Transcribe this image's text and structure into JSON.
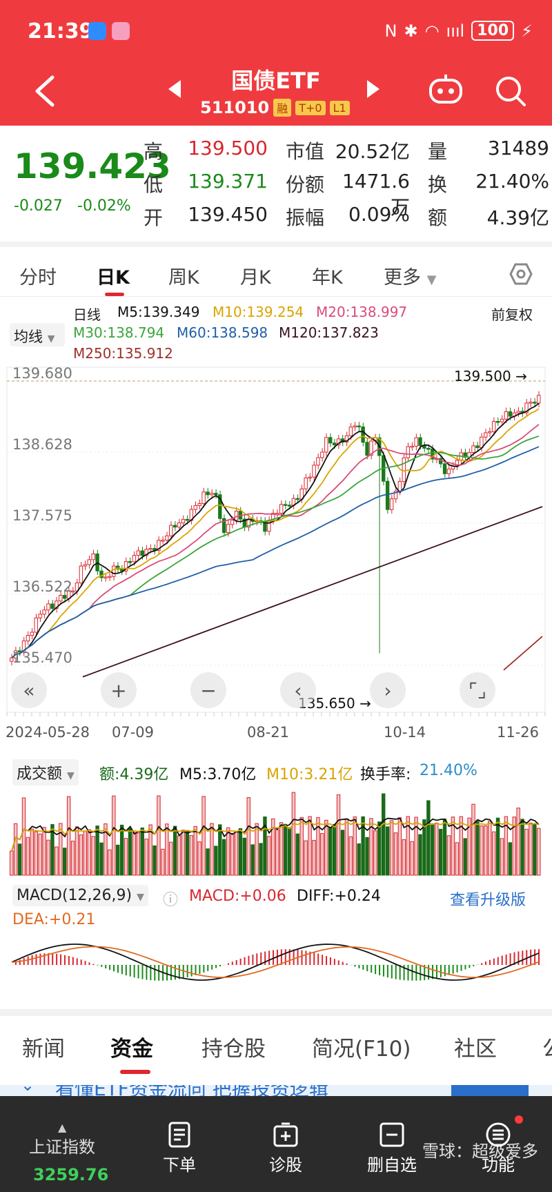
{
  "status": {
    "time": "21:39",
    "battery": "100",
    "nfc": "N",
    "bt": "✱",
    "wifi": "◠",
    "signal": "ıııl",
    "bolt": "⚡"
  },
  "header": {
    "title": "国债ETF",
    "code": "511010",
    "tags": [
      "融",
      "T+0",
      "L1"
    ],
    "back_icon": "chevron-left-icon",
    "prev_icon": "triangle-left-icon",
    "next_icon": "triangle-right-icon"
  },
  "quote": {
    "price": "139.423",
    "change": "-0.027",
    "change_pct": "-0.02%",
    "stats": [
      {
        "label": "高",
        "value": "139.500",
        "color": "red"
      },
      {
        "label": "低",
        "value": "139.371",
        "color": "green"
      },
      {
        "label": "开",
        "value": "139.450",
        "color": "normal"
      },
      {
        "label": "市值",
        "value": "20.52亿",
        "color": "normal"
      },
      {
        "label": "份额",
        "value": "1471.6万",
        "color": "normal"
      },
      {
        "label": "振幅",
        "value": "0.09%",
        "color": "normal"
      },
      {
        "label": "量",
        "value": "31489",
        "color": "normal"
      },
      {
        "label": "换",
        "value": "21.40%",
        "color": "normal"
      },
      {
        "label": "额",
        "value": "4.39亿",
        "color": "normal"
      }
    ]
  },
  "ktabs": [
    "分时",
    "日K",
    "周K",
    "月K",
    "年K",
    "更多"
  ],
  "legend": {
    "ma_select": "均线",
    "period": "日线",
    "adjust": "前复权",
    "ma": [
      {
        "label": "M5:139.349",
        "color": "#111111"
      },
      {
        "label": "M10:139.254",
        "color": "#d9a400"
      },
      {
        "label": "M20:138.997",
        "color": "#d94c7a"
      },
      {
        "label": "M30:138.794",
        "color": "#3aa53a"
      },
      {
        "label": "M60:138.598",
        "color": "#1f5fa8"
      },
      {
        "label": "M120:137.823",
        "color": "#3a1020"
      },
      {
        "label": "M250:135.912",
        "color": "#a0302a"
      }
    ]
  },
  "chart_data": {
    "type": "candlestick",
    "y_ticks": [
      "139.680",
      "138.628",
      "137.575",
      "136.522",
      "135.470"
    ],
    "ylim": [
      135.47,
      139.68
    ],
    "x_ticks": [
      "2024-05-28",
      "07-09",
      "08-21",
      "10-14",
      "11-26"
    ],
    "high_label": "139.500",
    "low_label": "135.650",
    "close_points": [
      135.58,
      135.75,
      136.0,
      136.3,
      136.35,
      136.5,
      136.55,
      136.95,
      137.1,
      136.7,
      136.9,
      136.9,
      137.1,
      137.15,
      137.2,
      137.35,
      137.55,
      137.6,
      137.8,
      138.0,
      138.05,
      137.4,
      137.75,
      137.55,
      137.65,
      137.5,
      137.75,
      137.85,
      137.9,
      138.2,
      138.45,
      138.8,
      138.75,
      138.85,
      139.1,
      138.6,
      138.9,
      137.8,
      138.05,
      138.7,
      138.8,
      138.65,
      138.5,
      138.3,
      138.55,
      138.6,
      138.75,
      138.95,
      139.1,
      139.2,
      139.2,
      139.35,
      139.42
    ],
    "toolbar_icons": [
      "collapse-icon",
      "zoom-in-icon",
      "zoom-out-icon",
      "scroll-left-icon",
      "scroll-right-icon",
      "fullscreen-icon"
    ]
  },
  "volume": {
    "select": "成交额",
    "amount": "额:4.39亿",
    "m5": "M5:3.70亿",
    "m10": "M10:3.21亿",
    "turnover_label": "换手率:",
    "turnover": "21.40%"
  },
  "macd": {
    "select": "MACD(12,26,9)",
    "macd": "MACD:+0.06",
    "diff": "DIFF:+0.24",
    "dea": "DEA:+0.21",
    "upgrade": "查看升级版"
  },
  "btabs": [
    "新闻",
    "资金",
    "持仓股",
    "简况(F10)",
    "社区",
    "公"
  ],
  "banner": {
    "text": "看懂ETF资金流向 把握投资逻辑"
  },
  "nav": {
    "index_name": "上证指数",
    "index_value": "3259.76",
    "items": [
      "下单",
      "诊股",
      "删自选",
      "功能"
    ],
    "watermark": "雪球：超级爱多"
  }
}
